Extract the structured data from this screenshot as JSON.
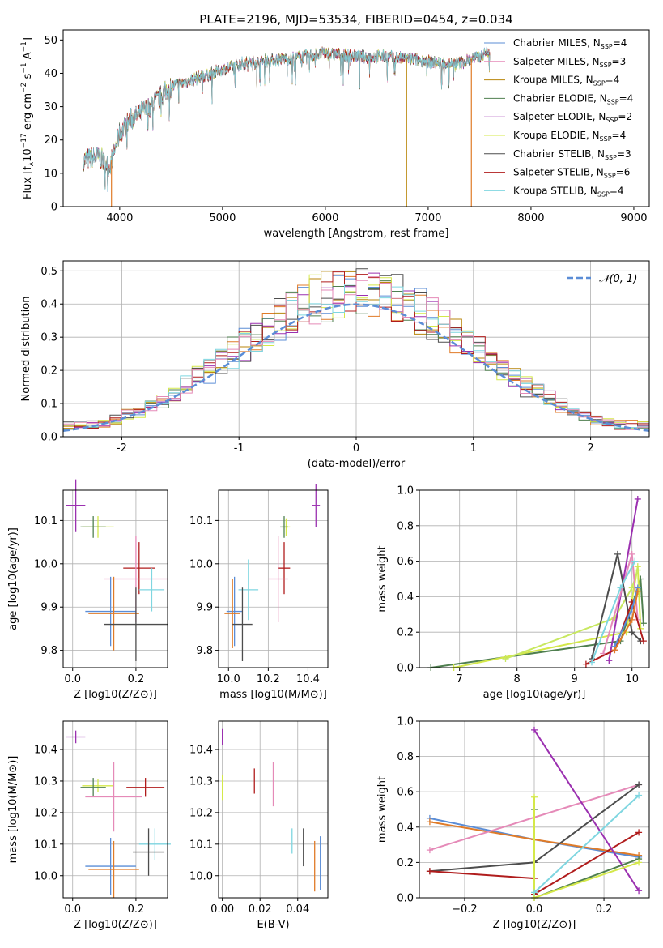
{
  "colors": {
    "blue": "#5b8dd6",
    "orange": "#e07b28",
    "olive": "#b8860b",
    "green": "#4f7f4f",
    "purple": "#9b30b0",
    "yellow": "#d4e84a",
    "dark": "#4d4d4d",
    "red": "#b01c1c",
    "cyan": "#7fd6e0",
    "pink": "#e58ab8",
    "lime": "#c8e860",
    "grid": "#b0b0b0"
  },
  "chart_data": [
    {
      "type": "line",
      "title": "PLATE=2196, MJD=53534, FIBERID=0454, z=0.034",
      "xlabel": "wavelength [Angstrom, rest frame]",
      "ylabel": "Flux [f_λ 10^-17 erg cm^-2 s^-1 A^-1]",
      "xlim": [
        3450,
        9150
      ],
      "ylim": [
        0,
        53
      ],
      "xticks": [
        4000,
        5000,
        6000,
        7000,
        8000,
        9000
      ],
      "yticks": [
        0,
        10,
        20,
        30,
        40,
        50
      ],
      "legend_position": "top-right",
      "spectrum_envelope": {
        "x": [
          3650,
          3800,
          3900,
          4000,
          4100,
          4300,
          4500,
          4800,
          5000,
          5200,
          5500,
          5800,
          6000,
          6300,
          6600,
          6900,
          7100,
          7300,
          7500,
          7600
        ],
        "y": [
          14,
          15,
          12,
          22,
          26,
          30,
          36,
          39,
          41,
          43,
          44,
          45,
          46,
          45,
          45,
          44,
          43,
          43,
          45,
          47
        ]
      },
      "series": [
        {
          "name": "Chabrier MILES",
          "nssp": "4",
          "color": "#5b8dd6"
        },
        {
          "name": "Salpeter MILES",
          "nssp": "3",
          "color": "#e58ab8"
        },
        {
          "name": "Kroupa MILES",
          "nssp": "4",
          "color": "#b8860b"
        },
        {
          "name": "Chabrier ELODIE",
          "nssp": "4",
          "color": "#4f7f4f"
        },
        {
          "name": "Salpeter ELODIE",
          "nssp": "2",
          "color": "#9b30b0"
        },
        {
          "name": "Kroupa ELODIE",
          "nssp": "4",
          "color": "#d4e84a"
        },
        {
          "name": "Chabrier STELIB",
          "nssp": "3",
          "color": "#4d4d4d"
        },
        {
          "name": "Salpeter STELIB",
          "nssp": "6",
          "color": "#b01c1c"
        },
        {
          "name": "Kroupa STELIB",
          "nssp": "4",
          "color": "#7fd6e0"
        }
      ],
      "dropouts": [
        {
          "x": 3920,
          "color": "#e07b28"
        },
        {
          "x": 6790,
          "color": "#b8860b"
        },
        {
          "x": 7420,
          "color": "#e07b28"
        }
      ]
    },
    {
      "type": "histogram",
      "xlabel": "(data-model)/error",
      "ylabel": "Normed distribution",
      "xlim": [
        -2.5,
        2.5
      ],
      "ylim": [
        0,
        0.53
      ],
      "xticks": [
        -2,
        -1,
        0,
        1,
        2
      ],
      "yticks": [
        0.0,
        0.1,
        0.2,
        0.3,
        0.4,
        0.5
      ],
      "reference_curve": {
        "name": "𝒩(0, 1)",
        "color": "#5b8dd6"
      },
      "legend_position": "top-right",
      "bin_width": 0.1,
      "typical_bins": {
        "x": [
          -2.5,
          -2.3,
          -2.1,
          -1.9,
          -1.7,
          -1.5,
          -1.3,
          -1.1,
          -0.9,
          -0.7,
          -0.5,
          -0.3,
          -0.1,
          0.1,
          0.3,
          0.5,
          0.7,
          0.9,
          1.1,
          1.3,
          1.5,
          1.7,
          1.9,
          2.1,
          2.3,
          2.5
        ],
        "y": [
          0.03,
          0.03,
          0.04,
          0.06,
          0.09,
          0.13,
          0.18,
          0.23,
          0.28,
          0.33,
          0.38,
          0.41,
          0.43,
          0.42,
          0.4,
          0.37,
          0.32,
          0.26,
          0.21,
          0.16,
          0.11,
          0.08,
          0.05,
          0.04,
          0.03,
          0.02
        ]
      }
    },
    {
      "type": "scatter",
      "name": "age-vs-Z",
      "xlabel": "Z [log10(Z/Z⊙)]",
      "ylabel": "age [log10(age/yr)]",
      "xlim": [
        -0.03,
        0.3
      ],
      "ylim": [
        9.76,
        10.17
      ],
      "xticks": [
        0.0,
        0.2
      ],
      "yticks": [
        9.8,
        9.9,
        10.0,
        10.1
      ],
      "points": [
        {
          "x": 0.01,
          "y": 10.135,
          "xerr": 0.03,
          "yerr": 0.06,
          "color": "#9b30b0"
        },
        {
          "x": 0.08,
          "y": 10.085,
          "xerr": 0.05,
          "yerr": 0.025,
          "color": "#d4e84a"
        },
        {
          "x": 0.065,
          "y": 10.085,
          "xerr": 0.04,
          "yerr": 0.025,
          "color": "#4f7f4f"
        },
        {
          "x": 0.21,
          "y": 9.99,
          "xerr": 0.05,
          "yerr": 0.06,
          "color": "#b01c1c"
        },
        {
          "x": 0.2,
          "y": 9.965,
          "xerr": 0.1,
          "yerr": 0.1,
          "color": "#e58ab8"
        },
        {
          "x": 0.25,
          "y": 9.94,
          "xerr": 0.04,
          "yerr": 0.05,
          "color": "#7fd6e0"
        },
        {
          "x": 0.12,
          "y": 9.89,
          "xerr": 0.08,
          "yerr": 0.08,
          "color": "#5b8dd6"
        },
        {
          "x": 0.13,
          "y": 9.885,
          "xerr": 0.08,
          "yerr": 0.085,
          "color": "#e07b28"
        },
        {
          "x": 0.2,
          "y": 9.86,
          "xerr": 0.1,
          "yerr": 0.085,
          "color": "#4d4d4d"
        }
      ]
    },
    {
      "type": "scatter",
      "name": "age-vs-mass",
      "xlabel": "mass [log10(M/M⊙)]",
      "ylabel": "",
      "xlim": [
        9.95,
        10.5
      ],
      "ylim": [
        9.76,
        10.17
      ],
      "xticks": [
        10.0,
        10.2,
        10.4
      ],
      "yticks": [
        9.8,
        9.9,
        10.0,
        10.1
      ],
      "points": [
        {
          "x": 10.44,
          "y": 10.135,
          "xerr": 0.02,
          "yerr": 0.05,
          "color": "#9b30b0"
        },
        {
          "x": 10.29,
          "y": 10.085,
          "xerr": 0.02,
          "yerr": 0.02,
          "color": "#d4e84a"
        },
        {
          "x": 10.28,
          "y": 10.085,
          "xerr": 0.02,
          "yerr": 0.025,
          "color": "#4f7f4f"
        },
        {
          "x": 10.28,
          "y": 9.99,
          "xerr": 0.03,
          "yerr": 0.06,
          "color": "#b01c1c"
        },
        {
          "x": 10.25,
          "y": 9.965,
          "xerr": 0.05,
          "yerr": 0.1,
          "color": "#e58ab8"
        },
        {
          "x": 10.1,
          "y": 9.94,
          "xerr": 0.05,
          "yerr": 0.07,
          "color": "#7fd6e0"
        },
        {
          "x": 10.03,
          "y": 9.89,
          "xerr": 0.04,
          "yerr": 0.08,
          "color": "#5b8dd6"
        },
        {
          "x": 10.02,
          "y": 9.885,
          "xerr": 0.04,
          "yerr": 0.08,
          "color": "#e07b28"
        },
        {
          "x": 10.07,
          "y": 9.86,
          "xerr": 0.05,
          "yerr": 0.085,
          "color": "#4d4d4d"
        }
      ]
    },
    {
      "type": "line",
      "name": "mass-weight-vs-age",
      "xlabel": "age [log10(age/yr)]",
      "ylabel": "mass weight",
      "xlim": [
        6.3,
        10.3
      ],
      "ylim": [
        0,
        1.0
      ],
      "xticks": [
        7,
        8,
        9,
        10
      ],
      "yticks": [
        0.0,
        0.2,
        0.4,
        0.6,
        0.8,
        1.0
      ],
      "series": [
        {
          "color": "#4f7f4f",
          "x": [
            6.5,
            9.8,
            10.15,
            10.2
          ],
          "y": [
            0.0,
            0.15,
            0.5,
            0.25
          ]
        },
        {
          "color": "#d4e84a",
          "x": [
            6.9,
            9.9,
            10.1,
            10.15
          ],
          "y": [
            0.0,
            0.2,
            0.57,
            0.22
          ]
        },
        {
          "color": "#c8e860",
          "x": [
            7.8,
            9.7,
            10.0,
            10.1
          ],
          "y": [
            0.05,
            0.28,
            0.45,
            0.55
          ]
        },
        {
          "color": "#9b30b0",
          "x": [
            9.6,
            10.1
          ],
          "y": [
            0.04,
            0.95
          ]
        },
        {
          "color": "#e58ab8",
          "x": [
            9.5,
            10.0,
            10.1
          ],
          "y": [
            0.08,
            0.64,
            0.27
          ]
        },
        {
          "color": "#4d4d4d",
          "x": [
            9.3,
            9.75,
            10.0,
            10.15
          ],
          "y": [
            0.05,
            0.64,
            0.2,
            0.15
          ]
        },
        {
          "color": "#b01c1c",
          "x": [
            9.2,
            9.7,
            10.0,
            10.2
          ],
          "y": [
            0.02,
            0.1,
            0.37,
            0.15
          ]
        },
        {
          "color": "#7fd6e0",
          "x": [
            9.3,
            9.8,
            10.05
          ],
          "y": [
            0.03,
            0.45,
            0.6
          ]
        },
        {
          "color": "#5b8dd6",
          "x": [
            9.7,
            10.0,
            10.1
          ],
          "y": [
            0.12,
            0.33,
            0.45
          ]
        },
        {
          "color": "#e07b28",
          "x": [
            9.7,
            10.0,
            10.1
          ],
          "y": [
            0.1,
            0.27,
            0.43
          ]
        }
      ]
    },
    {
      "type": "scatter",
      "name": "mass-vs-Z",
      "xlabel": "Z [log10(Z/Z⊙)]",
      "ylabel": "mass [log10(M/M⊙)]",
      "xlim": [
        -0.03,
        0.3
      ],
      "ylim": [
        9.93,
        10.49
      ],
      "xticks": [
        0.0,
        0.2
      ],
      "yticks": [
        10.0,
        10.1,
        10.2,
        10.3,
        10.4
      ],
      "points": [
        {
          "x": 0.01,
          "y": 10.44,
          "xerr": 0.03,
          "yerr": 0.02,
          "color": "#9b30b0"
        },
        {
          "x": 0.08,
          "y": 10.285,
          "xerr": 0.05,
          "yerr": 0.02,
          "color": "#d4e84a"
        },
        {
          "x": 0.065,
          "y": 10.28,
          "xerr": 0.04,
          "yerr": 0.03,
          "color": "#4f7f4f"
        },
        {
          "x": 0.23,
          "y": 10.28,
          "xerr": 0.06,
          "yerr": 0.03,
          "color": "#b01c1c"
        },
        {
          "x": 0.13,
          "y": 10.25,
          "xerr": 0.09,
          "yerr": 0.11,
          "color": "#e58ab8"
        },
        {
          "x": 0.26,
          "y": 10.1,
          "xerr": 0.05,
          "yerr": 0.05,
          "color": "#7fd6e0"
        },
        {
          "x": 0.12,
          "y": 10.03,
          "xerr": 0.08,
          "yerr": 0.09,
          "color": "#5b8dd6"
        },
        {
          "x": 0.13,
          "y": 10.02,
          "xerr": 0.08,
          "yerr": 0.09,
          "color": "#e07b28"
        },
        {
          "x": 0.24,
          "y": 10.075,
          "xerr": 0.05,
          "yerr": 0.075,
          "color": "#4d4d4d"
        }
      ]
    },
    {
      "type": "scatter",
      "name": "mass-vs-EBV",
      "xlabel": "E(B-V)",
      "ylabel": "",
      "xlim": [
        -0.002,
        0.056
      ],
      "ylim": [
        9.93,
        10.49
      ],
      "xticks": [
        0.0,
        0.02,
        0.04
      ],
      "yticks": [
        10.0,
        10.1,
        10.2,
        10.3,
        10.4
      ],
      "points": [
        {
          "x": 0.0,
          "y": 10.44,
          "yerr": 0.025,
          "color": "#9b30b0"
        },
        {
          "x": 0.0,
          "y": 10.28,
          "yerr": 0.04,
          "color": "#d4e84a"
        },
        {
          "x": 0.017,
          "y": 10.3,
          "yerr": 0.04,
          "color": "#b01c1c"
        },
        {
          "x": 0.027,
          "y": 10.29,
          "yerr": 0.07,
          "color": "#e58ab8"
        },
        {
          "x": 0.037,
          "y": 10.11,
          "yerr": 0.04,
          "color": "#7fd6e0"
        },
        {
          "x": 0.043,
          "y": 10.09,
          "yerr": 0.06,
          "color": "#4d4d4d"
        },
        {
          "x": 0.049,
          "y": 10.03,
          "yerr": 0.08,
          "color": "#e07b28"
        },
        {
          "x": 0.052,
          "y": 10.04,
          "yerr": 0.085,
          "color": "#5b8dd6"
        }
      ]
    },
    {
      "type": "line",
      "name": "mass-weight-vs-Z",
      "xlabel": "Z [log10(Z/Z⊙)]",
      "ylabel": "mass weight",
      "xlim": [
        -0.33,
        0.33
      ],
      "ylim": [
        0,
        1.0
      ],
      "xticks": [
        -0.2,
        0.0,
        0.2
      ],
      "yticks": [
        0.0,
        0.2,
        0.4,
        0.6,
        0.8,
        1.0
      ],
      "series": [
        {
          "color": "#5b8dd6",
          "x": [
            -0.3,
            0.0,
            0.3
          ],
          "y": [
            0.45,
            0.33,
            0.23
          ]
        },
        {
          "color": "#e07b28",
          "x": [
            -0.3,
            0.0,
            0.3
          ],
          "y": [
            0.43,
            0.33,
            0.24
          ]
        },
        {
          "color": "#e58ab8",
          "x": [
            -0.3,
            0.3
          ],
          "y": [
            0.27,
            0.64
          ]
        },
        {
          "color": "#4d4d4d",
          "x": [
            -0.3,
            0.0,
            0.3
          ],
          "y": [
            0.15,
            0.2,
            0.64
          ]
        },
        {
          "color": "#b01c1c",
          "x": [
            -0.3,
            0.0
          ],
          "y": [
            0.15,
            0.11
          ]
        },
        {
          "color": "#b01c1c",
          "x": [
            0.0,
            0.3
          ],
          "y": [
            0.02,
            0.37
          ]
        },
        {
          "color": "#9b30b0",
          "x": [
            0.0,
            0.3
          ],
          "y": [
            0.95,
            0.04
          ]
        },
        {
          "color": "#4f7f4f",
          "x": [
            0.0,
            0.0,
            0.3
          ],
          "y": [
            0.5,
            0.0,
            0.22
          ]
        },
        {
          "color": "#d4e84a",
          "x": [
            0.0,
            0.0,
            0.3
          ],
          "y": [
            0.57,
            0.0,
            0.2
          ]
        },
        {
          "color": "#7fd6e0",
          "x": [
            0.0,
            0.3
          ],
          "y": [
            0.03,
            0.58
          ]
        }
      ]
    }
  ]
}
